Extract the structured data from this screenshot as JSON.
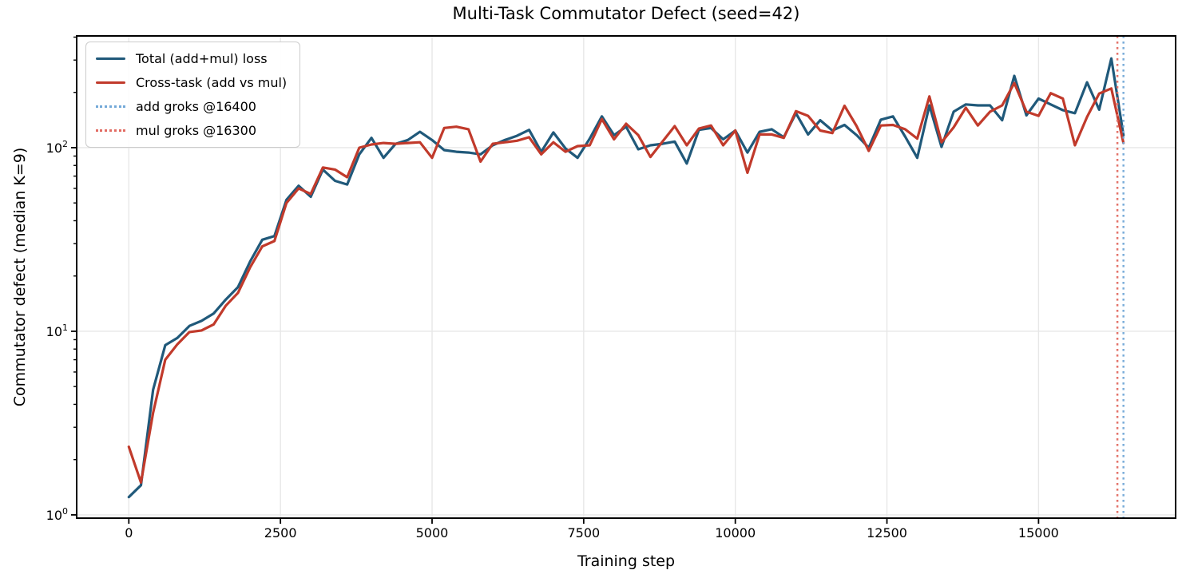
{
  "chart_data": {
    "type": "line",
    "title": "Multi-Task Commutator Defect (seed=42)",
    "xlabel": "Training step",
    "ylabel": "Commutator defect (median K=9)",
    "yscale": "log",
    "grid": true,
    "legend_position": "upper-left",
    "xlim": [
      -860,
      17260
    ],
    "ylim": [
      0.96,
      406
    ],
    "x_ticks": [
      0,
      2500,
      5000,
      7500,
      10000,
      12500,
      15000
    ],
    "y_ticks": [
      {
        "value": 1,
        "base": "10",
        "exponent": "0"
      },
      {
        "value": 10,
        "base": "10",
        "exponent": "1"
      },
      {
        "value": 100,
        "base": "10",
        "exponent": "2"
      }
    ],
    "x": [
      0,
      200,
      400,
      600,
      800,
      1000,
      1200,
      1400,
      1600,
      1800,
      2000,
      2200,
      2400,
      2600,
      2800,
      3000,
      3200,
      3400,
      3600,
      3800,
      4000,
      4200,
      4400,
      4600,
      4800,
      5000,
      5200,
      5400,
      5600,
      5800,
      6000,
      6200,
      6400,
      6600,
      6800,
      7000,
      7200,
      7400,
      7600,
      7800,
      8000,
      8200,
      8400,
      8600,
      8800,
      9000,
      9200,
      9400,
      9600,
      9800,
      10000,
      10200,
      10400,
      10600,
      10800,
      11000,
      11200,
      11400,
      11600,
      11800,
      12000,
      12200,
      12400,
      12600,
      12800,
      13000,
      13200,
      13400,
      13600,
      13800,
      14000,
      14200,
      14400,
      14600,
      14800,
      15000,
      15200,
      15400,
      15600,
      15800,
      16000,
      16200,
      16400
    ],
    "series": [
      {
        "name": "Total (add+mul) loss",
        "color": "#20597a",
        "style": "solid",
        "values": [
          1.25,
          1.45,
          4.8,
          8.4,
          9.2,
          10.7,
          11.4,
          12.5,
          14.9,
          17.4,
          24,
          31.5,
          33,
          52,
          62,
          54,
          76,
          66,
          63,
          92,
          113,
          88,
          105,
          110,
          122,
          110,
          97,
          95,
          94,
          92,
          103,
          110,
          116,
          125,
          95,
          121,
          99,
          88,
          112,
          148,
          117,
          130,
          98,
          103,
          105,
          108,
          82,
          125,
          128,
          111,
          124,
          94,
          122,
          126,
          114,
          154,
          118,
          141,
          124,
          133,
          117,
          100,
          142,
          148,
          115,
          88,
          170,
          101,
          157,
          172,
          170,
          170,
          141,
          246,
          150,
          185,
          172,
          160,
          154,
          227,
          161,
          306,
          117
        ]
      },
      {
        "name": "Cross-task (add vs mul)",
        "color": "#c13a2b",
        "style": "solid",
        "values": [
          2.35,
          1.5,
          3.6,
          7.0,
          8.5,
          9.9,
          10.1,
          10.9,
          13.8,
          16.2,
          22.3,
          29,
          31,
          50,
          60,
          56,
          78,
          76,
          69,
          100,
          104,
          106,
          105,
          106,
          107,
          88,
          128,
          130,
          126,
          84,
          105,
          107,
          109,
          114,
          92,
          107,
          95,
          102,
          103,
          143,
          111,
          135,
          117,
          89,
          108,
          131,
          103,
          127,
          132,
          103,
          124,
          73,
          118,
          118,
          113,
          158,
          149,
          124,
          120,
          169,
          131,
          96,
          132,
          133,
          126,
          112,
          190,
          107,
          129,
          165,
          132,
          157,
          170,
          225,
          157,
          149,
          198,
          185,
          103,
          147,
          197,
          210,
          106
        ]
      }
    ],
    "vlines": [
      {
        "name": "add groks @16400",
        "x": 16400,
        "color": "#74a9d8",
        "style": "dotted"
      },
      {
        "name": "mul groks @16300",
        "x": 16300,
        "color": "#e26c63",
        "style": "dotted"
      }
    ]
  },
  "colors": {
    "spine": "#000000",
    "grid": "#e7e7e7",
    "tick_text": "#000000"
  }
}
